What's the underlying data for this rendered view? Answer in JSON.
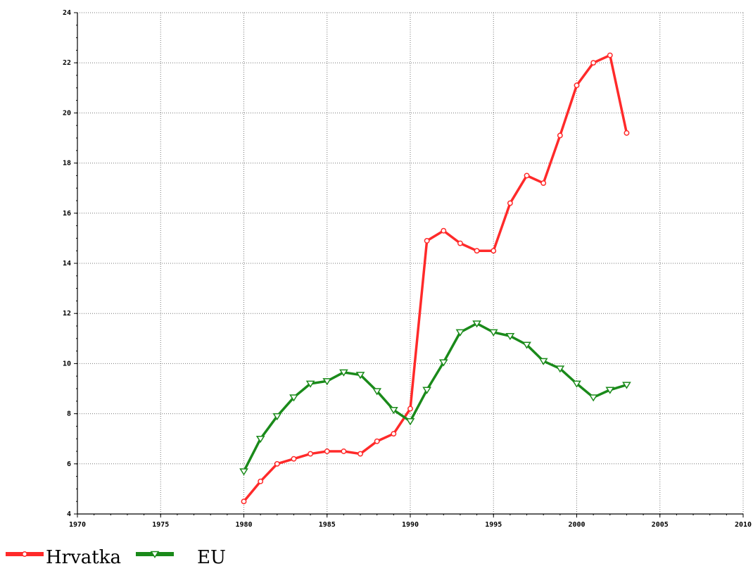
{
  "chart_data": {
    "type": "line",
    "title": "",
    "xlabel": "",
    "ylabel": "",
    "xlim": [
      1970,
      2010
    ],
    "ylim": [
      4,
      24
    ],
    "x_ticks": [
      1970,
      1975,
      1980,
      1985,
      1990,
      1995,
      2000,
      2005,
      2010
    ],
    "y_ticks": [
      4,
      6,
      8,
      10,
      12,
      14,
      16,
      18,
      20,
      22,
      24
    ],
    "grid": true,
    "legend_position": "bottom-left",
    "series": [
      {
        "name": "Hrvatka",
        "color": "#ff2a2a",
        "marker": "circle",
        "x": [
          1980,
          1981,
          1982,
          1983,
          1984,
          1985,
          1986,
          1987,
          1988,
          1989,
          1990,
          1991,
          1992,
          1993,
          1994,
          1995,
          1996,
          1997,
          1998,
          1999,
          2000,
          2001,
          2002,
          2003
        ],
        "values": [
          4.5,
          5.3,
          6.0,
          6.2,
          6.4,
          6.5,
          6.5,
          6.4,
          6.9,
          7.2,
          8.2,
          14.9,
          15.3,
          14.8,
          14.5,
          14.5,
          16.4,
          17.5,
          17.2,
          19.1,
          21.1,
          22.0,
          22.3,
          19.2
        ]
      },
      {
        "name": "EU",
        "color": "#1a8a1a",
        "marker": "triangle-down",
        "x": [
          1980,
          1981,
          1982,
          1983,
          1984,
          1985,
          1986,
          1987,
          1988,
          1989,
          1990,
          1991,
          1992,
          1993,
          1994,
          1995,
          1996,
          1997,
          1998,
          1999,
          2000,
          2001,
          2002,
          2003
        ],
        "values": [
          5.7,
          7.0,
          7.9,
          8.65,
          9.2,
          9.3,
          9.65,
          9.55,
          8.9,
          8.15,
          7.7,
          8.95,
          10.05,
          11.25,
          11.6,
          11.25,
          11.1,
          10.75,
          10.1,
          9.8,
          9.2,
          8.65,
          8.95,
          9.15
        ]
      }
    ]
  }
}
